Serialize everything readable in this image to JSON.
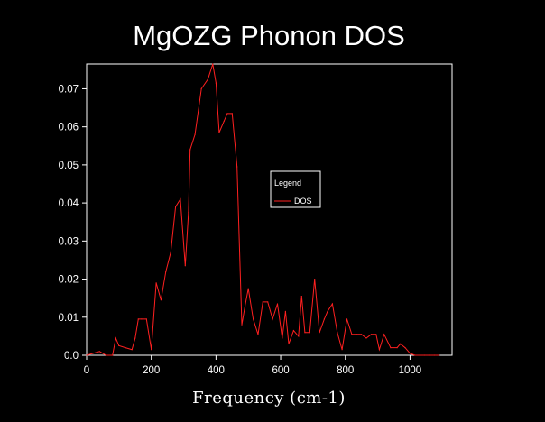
{
  "chart_data": {
    "type": "line",
    "title": "MgOZG Phonon DOS",
    "xlabel": "Frequency (cm-1)",
    "ylabel": "",
    "xlim": [
      0,
      1130
    ],
    "ylim": [
      0,
      0.0765
    ],
    "x_ticks": [
      0,
      200,
      400,
      600,
      800,
      1000
    ],
    "x_tick_labels": [
      "0",
      "200",
      "400",
      "600",
      "800",
      "1000"
    ],
    "y_ticks": [
      0,
      0.01,
      0.02,
      0.03,
      0.04,
      0.05,
      0.06,
      0.07
    ],
    "y_tick_labels": [
      "0.0",
      "0.01",
      "0.02",
      "0.03",
      "0.04",
      "0.05",
      "0.06",
      "0.07"
    ],
    "legend": {
      "title": "Legend",
      "entries": [
        "DOS"
      ],
      "placement": "center-right"
    },
    "grid": false,
    "colors": {
      "background": "#000000",
      "axes": "#ffffff",
      "series": "#ff2020"
    },
    "series": [
      {
        "name": "DOS",
        "x": [
          0,
          40,
          60,
          80,
          90,
          100,
          120,
          140,
          150,
          160,
          170,
          185,
          200,
          215,
          230,
          245,
          260,
          275,
          290,
          305,
          315,
          320,
          335,
          355,
          375,
          390,
          400,
          410,
          425,
          435,
          450,
          465,
          480,
          490,
          500,
          515,
          530,
          545,
          560,
          575,
          590,
          605,
          615,
          625,
          640,
          655,
          665,
          675,
          690,
          705,
          720,
          735,
          745,
          760,
          775,
          790,
          805,
          820,
          835,
          850,
          865,
          880,
          895,
          905,
          920,
          940,
          960,
          970,
          985,
          1000,
          1015,
          1030,
          1045,
          1060,
          1075,
          1090
        ],
        "values": [
          0,
          0.001,
          0.0,
          0.0,
          0.0045,
          0.0025,
          0.002,
          0.0015,
          0.0045,
          0.0095,
          0.0095,
          0.0095,
          0.0015,
          0.019,
          0.0145,
          0.022,
          0.027,
          0.039,
          0.041,
          0.0235,
          0.0375,
          0.054,
          0.058,
          0.07,
          0.0725,
          0.0765,
          0.0715,
          0.0585,
          0.0615,
          0.0635,
          0.0635,
          0.0495,
          0.008,
          0.013,
          0.0175,
          0.0095,
          0.0055,
          0.014,
          0.014,
          0.0095,
          0.0135,
          0.0045,
          0.0115,
          0.003,
          0.0065,
          0.005,
          0.0155,
          0.006,
          0.006,
          0.02,
          0.006,
          0.0095,
          0.0115,
          0.0135,
          0.006,
          0.0015,
          0.0095,
          0.0055,
          0.0055,
          0.0055,
          0.0045,
          0.0055,
          0.0055,
          0.0015,
          0.0055,
          0.002,
          0.002,
          0.003,
          0.002,
          0.0005,
          0.0,
          0.0,
          0.0,
          0.0,
          0.0,
          0.0
        ]
      }
    ]
  }
}
